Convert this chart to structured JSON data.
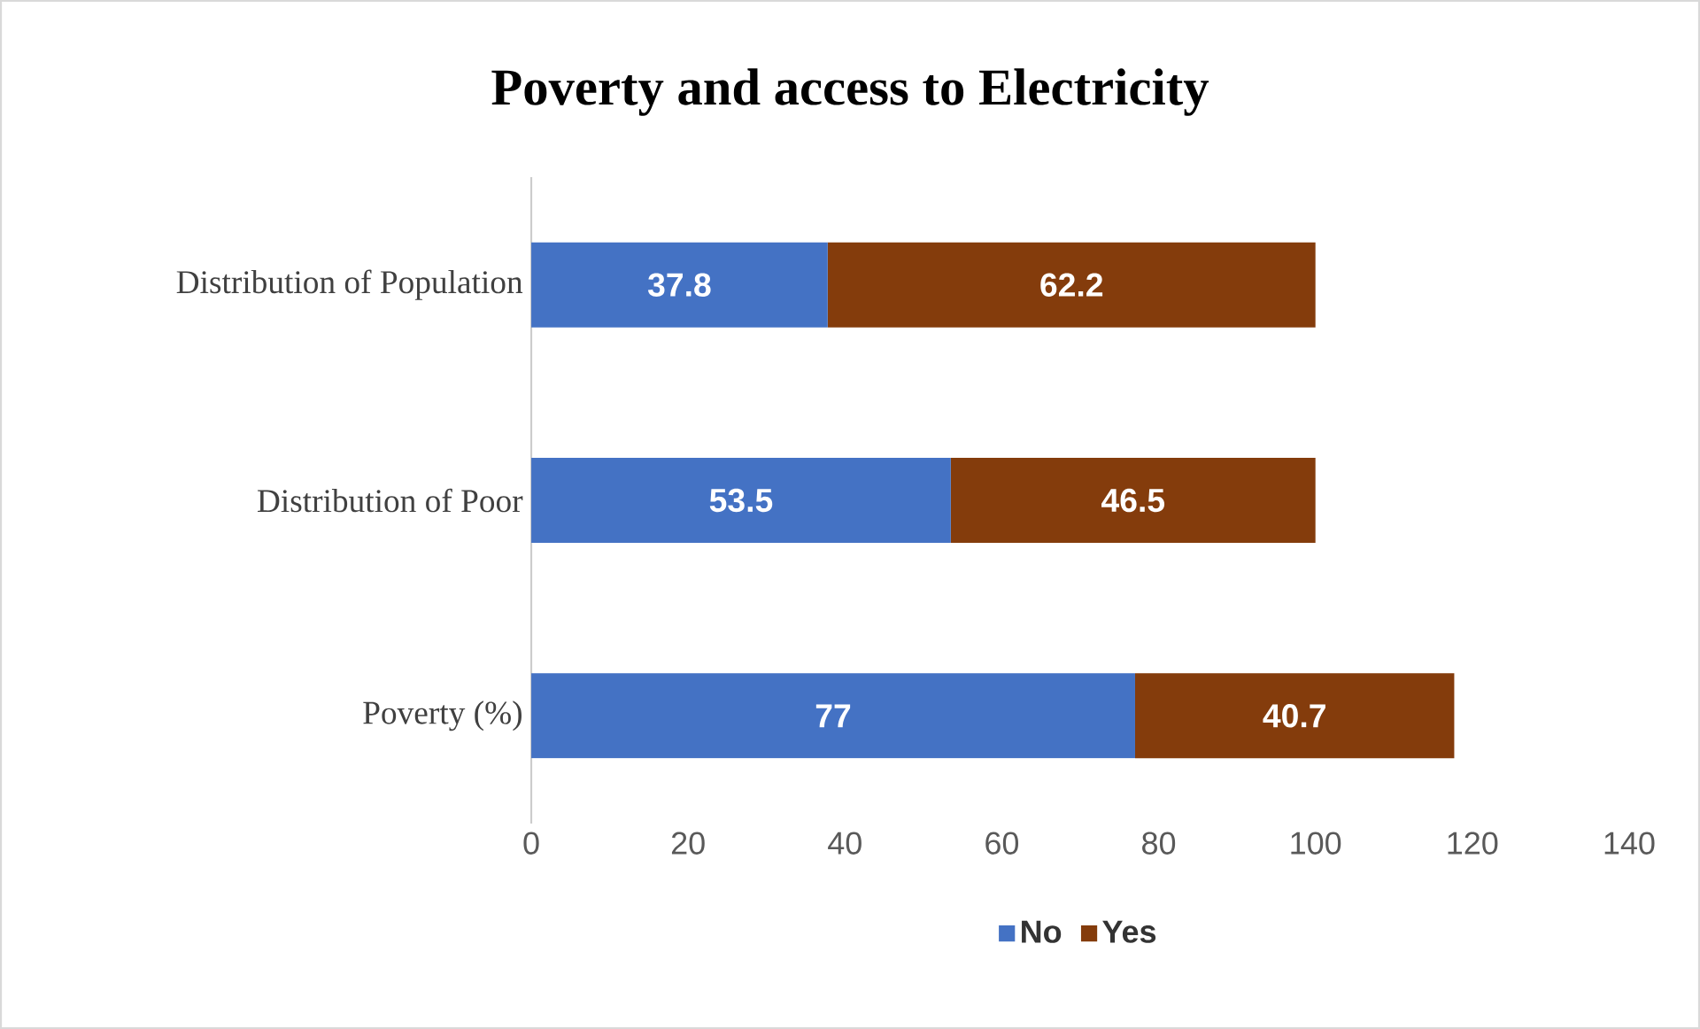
{
  "chart_data": {
    "type": "bar",
    "title": "Poverty and access to Electricity",
    "orientation": "horizontal",
    "stacked": true,
    "categories": [
      "Distribution of Population",
      "Distribution of Poor",
      "Poverty (%)"
    ],
    "series": [
      {
        "name": "No",
        "color": "#4472c4",
        "values": [
          37.8,
          53.5,
          77
        ]
      },
      {
        "name": "Yes",
        "color": "#843c0c",
        "values": [
          62.2,
          46.5,
          40.7
        ]
      }
    ],
    "xlim": [
      0,
      140
    ],
    "xticks": [
      0,
      20,
      40,
      60,
      80,
      100,
      120,
      140
    ],
    "data_labels": true,
    "legend": "bottom"
  }
}
